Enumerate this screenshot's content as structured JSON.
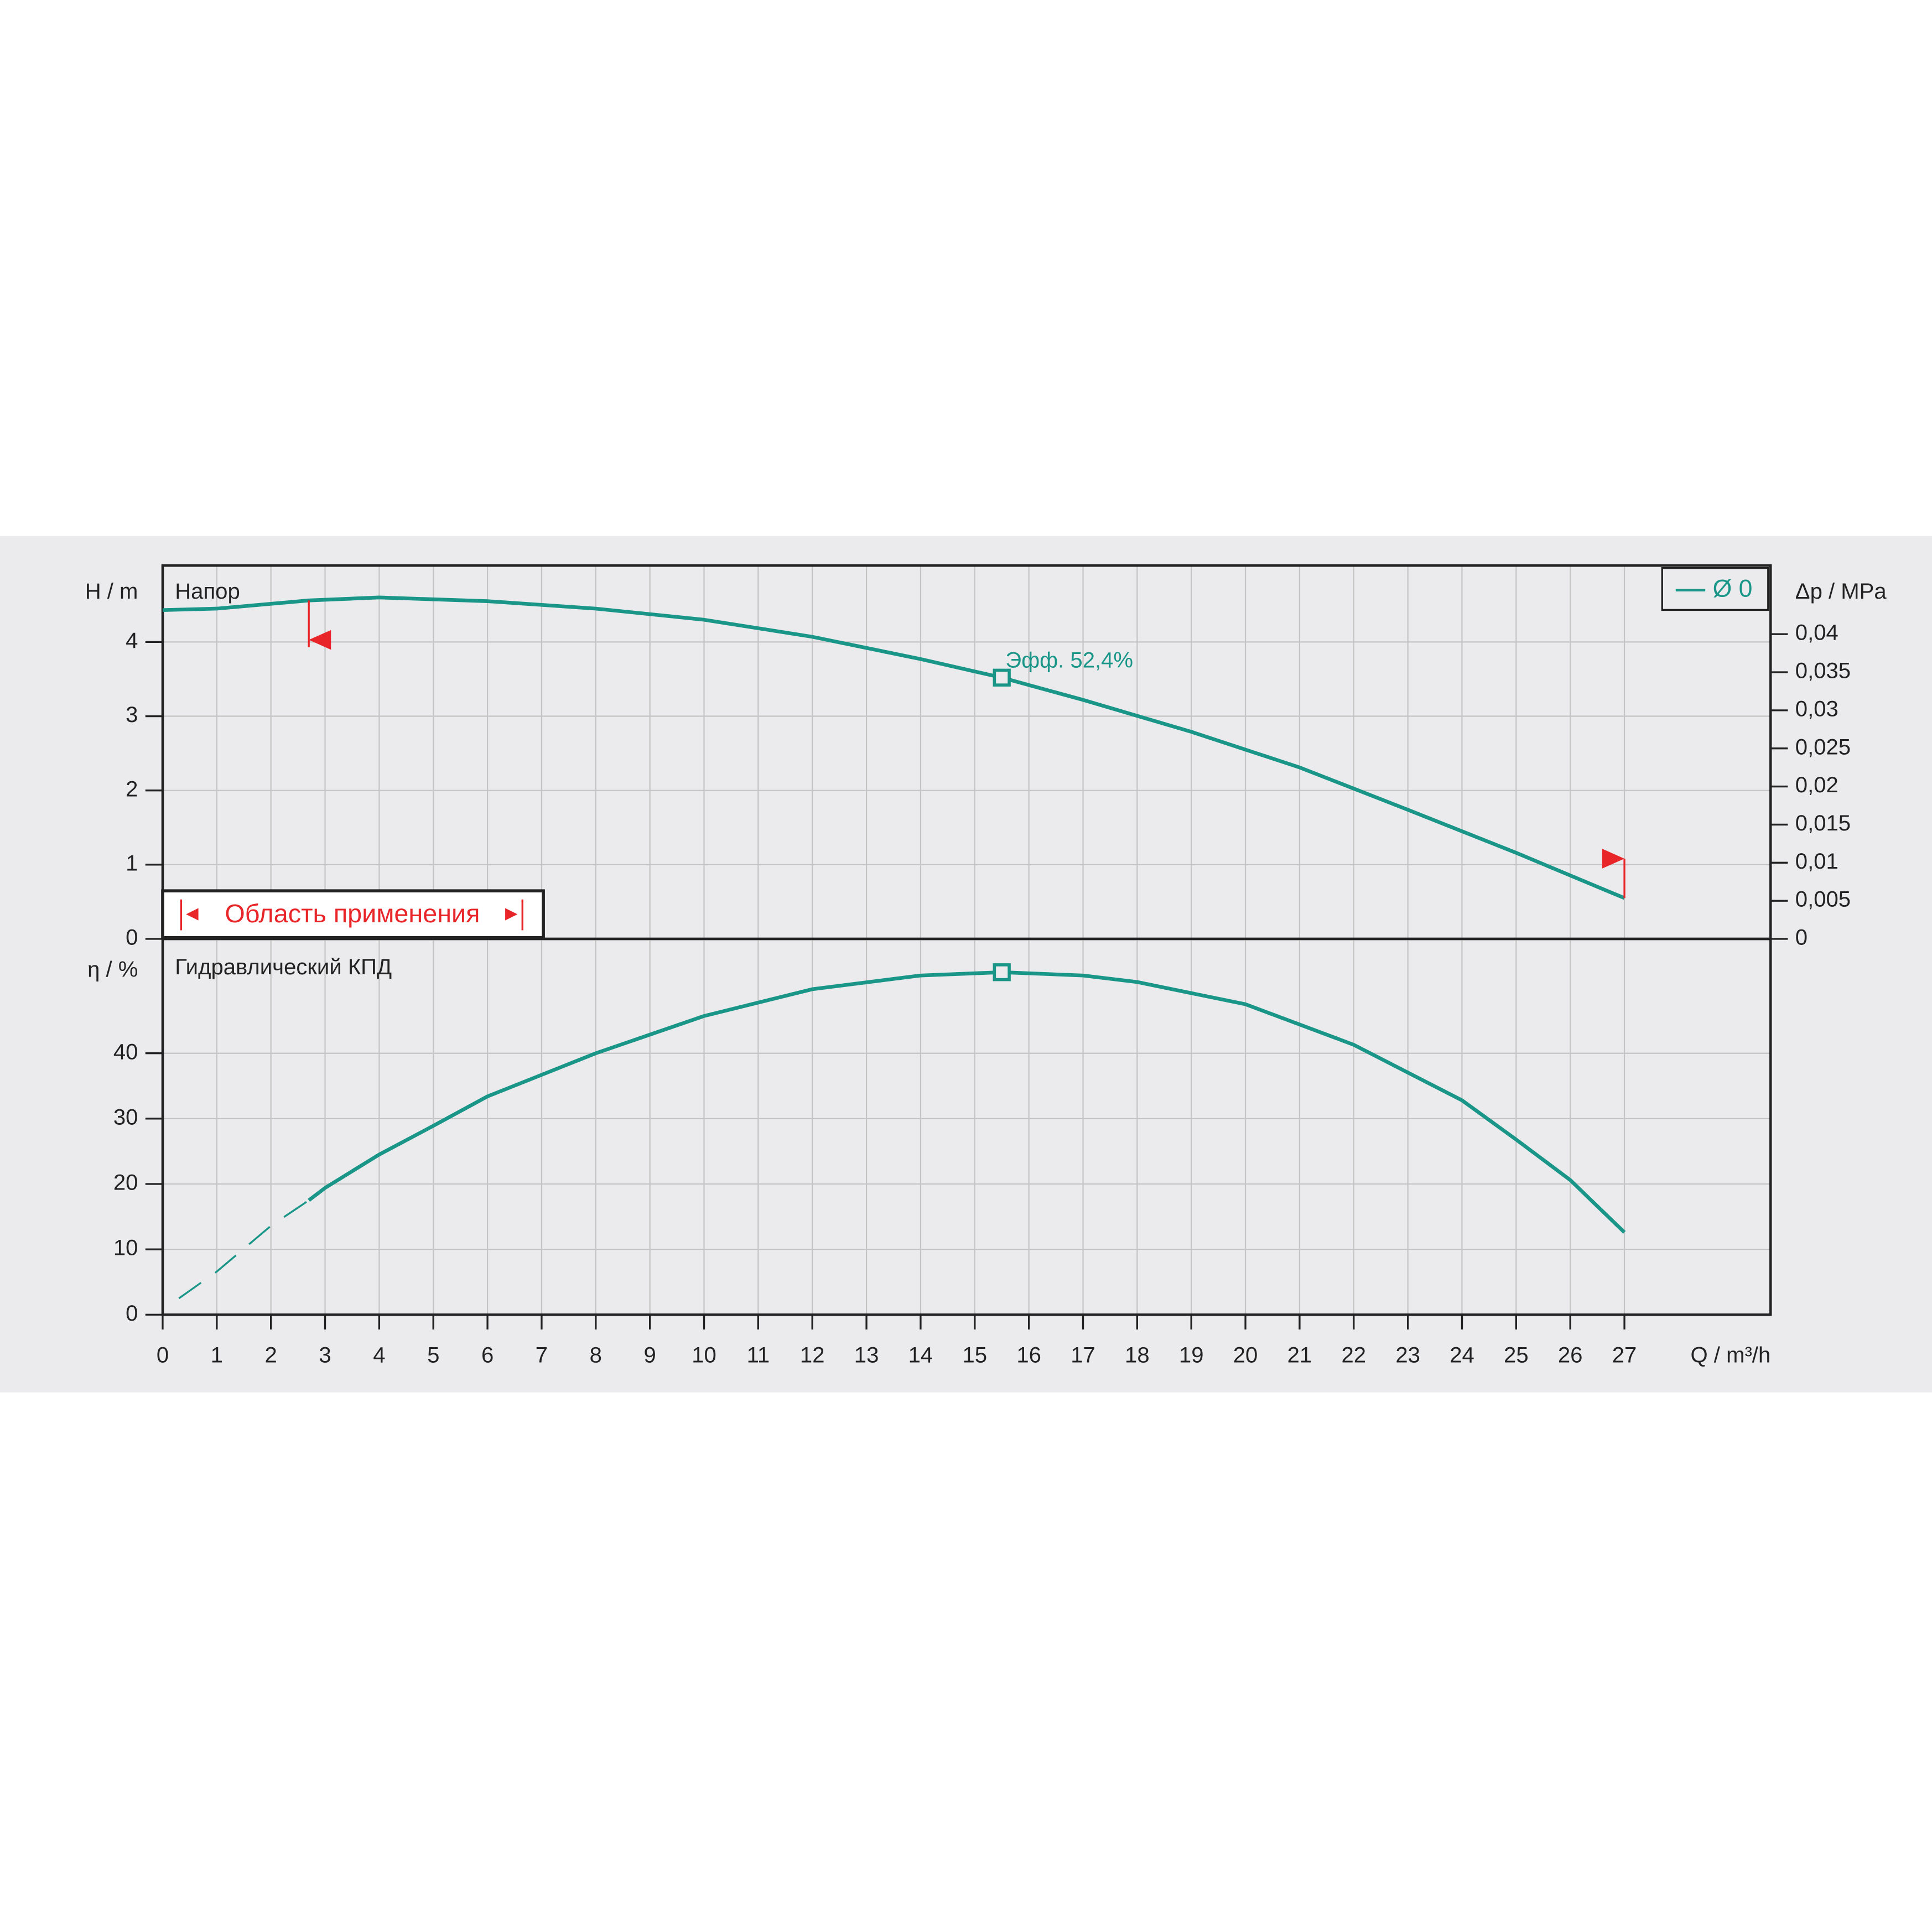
{
  "chart_data": [
    {
      "type": "line",
      "title": "Напор",
      "ylabel": "H / m",
      "y2label": "Δp / MPa",
      "xlim": [
        0,
        29.7
      ],
      "ylim": [
        0,
        5.03
      ],
      "yticks": [
        0,
        1,
        2,
        3,
        4
      ],
      "y2lim": [
        0,
        0.049
      ],
      "y2ticks": [
        0,
        {
          "value": 0.005,
          "label": "0,005"
        },
        {
          "value": 0.01,
          "label": "0,01"
        },
        {
          "value": 0.015,
          "label": "0,015"
        },
        {
          "value": 0.02,
          "label": "0,02"
        },
        {
          "value": 0.025,
          "label": "0,025"
        },
        {
          "value": 0.03,
          "label": "0,03"
        },
        {
          "value": 0.035,
          "label": "0,035"
        },
        {
          "value": 0.04,
          "label": "0,04"
        }
      ],
      "grid": true,
      "legend": "upper right",
      "series": [
        {
          "name": "Ø 0",
          "color": "#1a9688",
          "x": [
            0,
            1,
            2.7,
            4,
            6,
            8,
            10,
            12,
            14,
            15.5,
            17,
            19,
            21,
            23,
            25,
            27
          ],
          "values": [
            4.43,
            4.45,
            4.56,
            4.6,
            4.55,
            4.45,
            4.3,
            4.07,
            3.77,
            3.52,
            3.22,
            2.79,
            2.31,
            1.74,
            1.16,
            0.55
          ]
        }
      ],
      "operating_point": {
        "x": 15.5,
        "y": 3.52,
        "label": "Эфф.  52,4%"
      },
      "range": {
        "label": "Область применения",
        "color": "#e8262a",
        "x": [
          2.7,
          27
        ]
      }
    },
    {
      "type": "line",
      "title": "Гидравлический КПД",
      "ylabel": "η / %",
      "xlabel": "Q / m³/h",
      "xlim": [
        0,
        29.7
      ],
      "xticks": [
        0,
        1,
        2,
        3,
        4,
        5,
        6,
        7,
        8,
        9,
        10,
        11,
        12,
        13,
        14,
        15,
        16,
        17,
        18,
        19,
        20,
        21,
        22,
        23,
        24,
        25,
        26,
        27
      ],
      "ylim": [
        0,
        57.5
      ],
      "yticks": [
        0,
        10,
        20,
        30,
        40
      ],
      "grid": true,
      "series": [
        {
          "color": "#1a9688",
          "dashed": true,
          "x": [
            0.3,
            1,
            2,
            2.7
          ],
          "values": [
            2.5,
            6.6,
            13.6,
            17.5
          ]
        },
        {
          "color": "#1a9688",
          "x": [
            2.7,
            3,
            4,
            5,
            6,
            8,
            10,
            12,
            14,
            15.5,
            17,
            18,
            20,
            22,
            24,
            25,
            26,
            27
          ],
          "values": [
            17.5,
            19.4,
            24.5,
            28.9,
            33.4,
            40,
            45.7,
            49.8,
            51.9,
            52.4,
            51.9,
            50.9,
            47.5,
            41.3,
            32.8,
            26.8,
            20.6,
            12.6
          ]
        }
      ],
      "operating_point": {
        "x": 15.5,
        "y": 52.4
      }
    }
  ]
}
